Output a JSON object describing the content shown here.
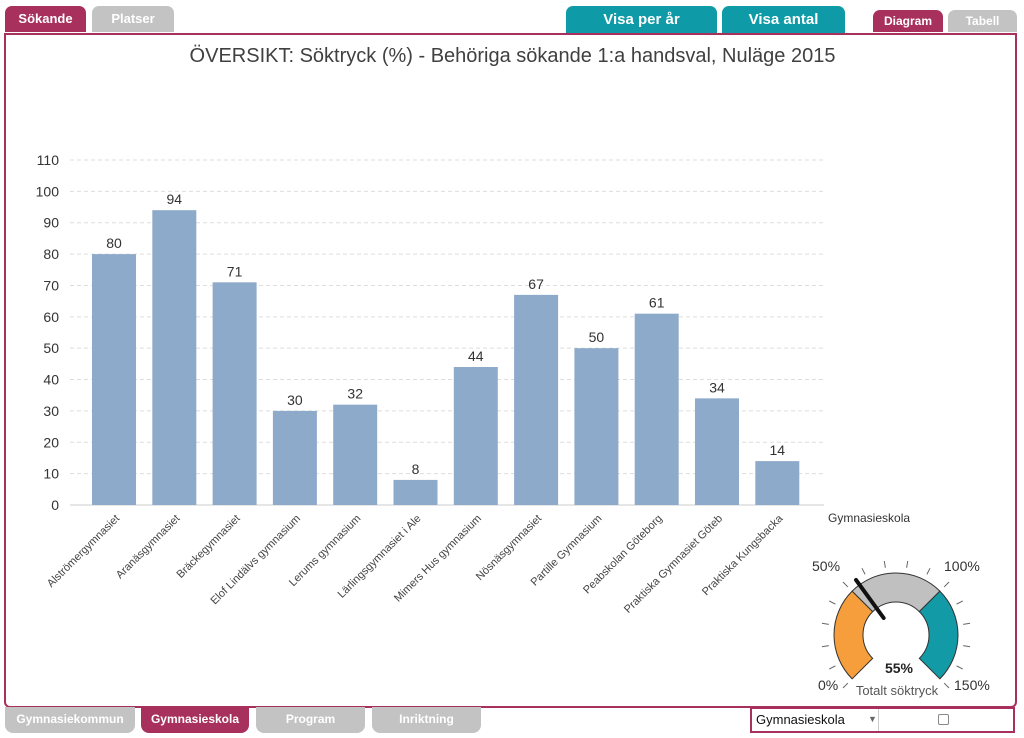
{
  "tabs": {
    "sokande": "Sökande",
    "platser": "Platser",
    "visa_per_ar": "Visa per år",
    "visa_antal": "Visa antal",
    "diagram": "Diagram",
    "tabell": "Tabell"
  },
  "bottom_tabs": {
    "gymnasiekommun": "Gymnasiekommun",
    "gymnasieskola": "Gymnasieskola",
    "program": "Program",
    "inriktning": "Inriktning"
  },
  "colors": {
    "accent": "#a8305c",
    "teal": "#0f9aa8",
    "bar": "#8eaacb",
    "gauge_orange": "#f59e3b",
    "gauge_gray": "#c0c0c0",
    "gauge_teal": "#129aa6"
  },
  "chart_data": {
    "type": "bar",
    "title": "ÖVERSIKT: Söktryck (%) - Behöriga sökande 1:a handsval, Nuläge 2015",
    "dimension_label": "Gymnasieskola",
    "categories": [
      "Alströmergymnasiet",
      "Aranäsgymnasiet",
      "Bräckegymnasiet",
      "Elof Lindälvs gymnasium",
      "Lerums gymnasium",
      "Lärlingsgymnasiet i Ale",
      "Mimers Hus gymnasium",
      "Nösnäsgymnasiet",
      "Partille Gymnasium",
      "Peabskolan Göteborg",
      "Praktiska Gymnasiet Göteb",
      "Praktiska Kungsbacka"
    ],
    "values": [
      80,
      94,
      71,
      30,
      32,
      8,
      44,
      67,
      50,
      61,
      34,
      14
    ],
    "ylim": [
      0,
      110
    ],
    "yticks": [
      0,
      10,
      20,
      30,
      40,
      50,
      60,
      70,
      80,
      90,
      100,
      110
    ],
    "grid": true
  },
  "gauge": {
    "value": 55,
    "value_label": "55%",
    "caption": "Totalt söktryck",
    "min": 0,
    "max": 150,
    "bands": [
      {
        "from": 0,
        "to": 50,
        "color": "#f59e3b"
      },
      {
        "from": 50,
        "to": 100,
        "color": "#c0c0c0"
      },
      {
        "from": 100,
        "to": 150,
        "color": "#129aa6"
      }
    ],
    "labels": {
      "min": "0%",
      "low": "50%",
      "high": "100%",
      "max": "150%"
    }
  },
  "selector": {
    "value": "Gymnasieskola"
  }
}
